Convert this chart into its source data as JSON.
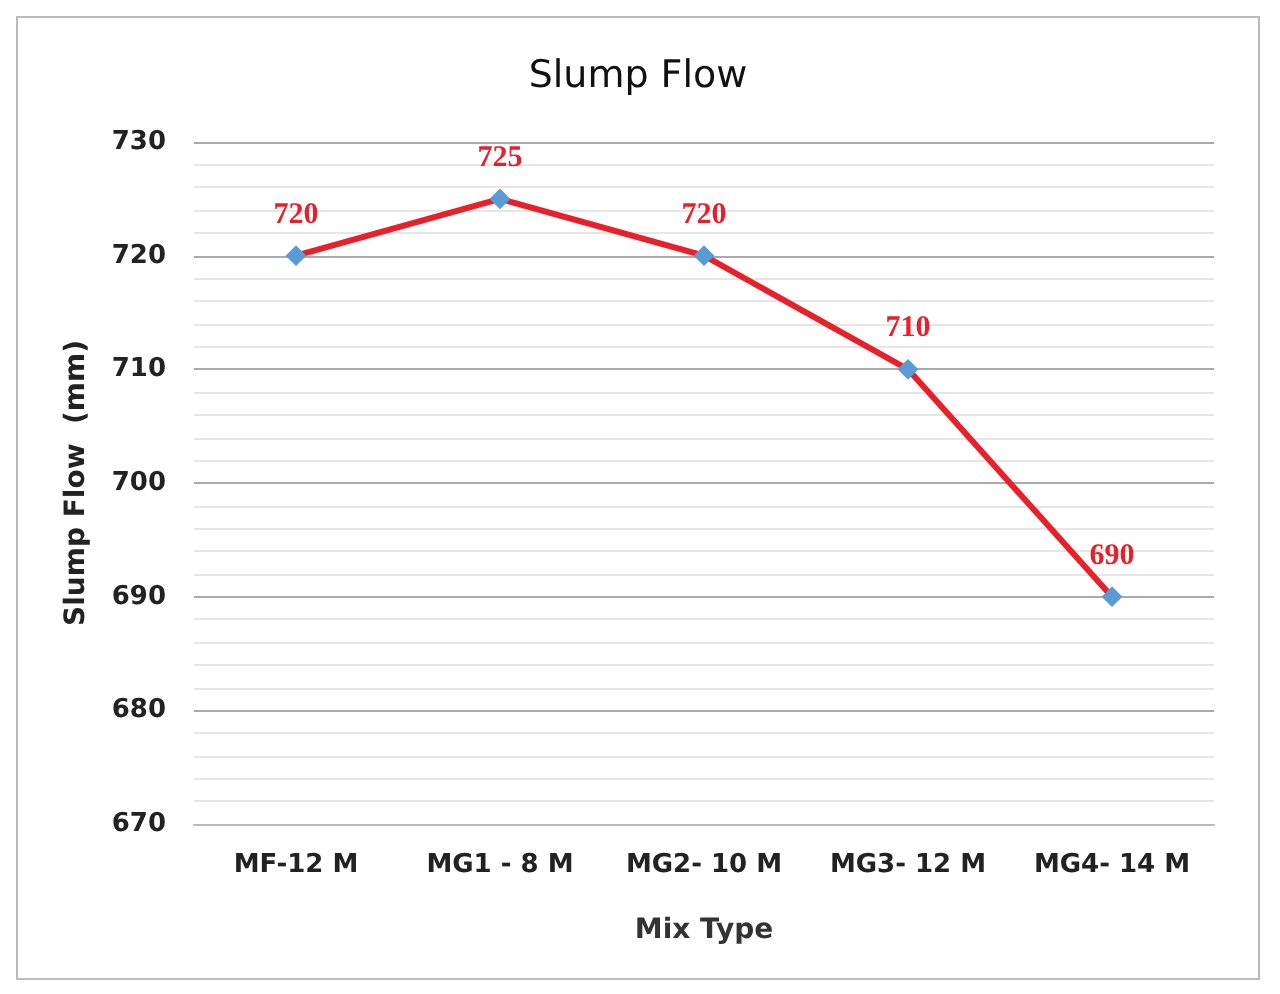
{
  "chart_data": {
    "type": "line",
    "title": "Slump Flow",
    "xlabel": "Mix Type",
    "ylabel": "Slump Flow  (mm)",
    "categories": [
      "MF-12 M",
      "MG1 - 8 M",
      "MG2- 10 M",
      "MG3- 12 M",
      "MG4- 14 M"
    ],
    "series": [
      {
        "color": "#e8202a",
        "values": [
          720,
          725,
          720,
          710,
          690
        ]
      }
    ],
    "ylim": [
      670,
      730
    ],
    "yticks": [
      670,
      680,
      690,
      700,
      710,
      720,
      730
    ],
    "grid": "y",
    "marker": "diamond",
    "data_labels": true
  }
}
